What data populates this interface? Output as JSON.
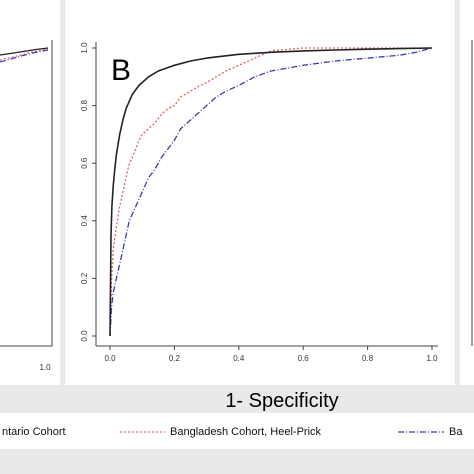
{
  "chart_data": {
    "type": "line",
    "panel_label": "B",
    "xlabel": "1- Specificity",
    "ylabel": "",
    "xlim": [
      0,
      1
    ],
    "ylim": [
      0,
      1
    ],
    "x_ticks": [
      "0.0",
      "0.2",
      "0.4",
      "0.6",
      "0.8",
      "1.0"
    ],
    "y_ticks": [
      "0.0",
      "0.2",
      "0.4",
      "0.6",
      "0.8",
      "1.0"
    ],
    "left_panel_x_tick": "1.0",
    "grid": false,
    "series": [
      {
        "name": "Ontario Cohort",
        "legend_text": "ntario Cohort",
        "color": "#222222",
        "style": "solid",
        "x": [
          0,
          0.003,
          0.006,
          0.01,
          0.015,
          0.02,
          0.03,
          0.04,
          0.05,
          0.07,
          0.09,
          0.12,
          0.15,
          0.2,
          0.25,
          0.3,
          0.4,
          0.5,
          0.6,
          0.7,
          0.8,
          0.9,
          1.0
        ],
        "y": [
          0,
          0.35,
          0.45,
          0.52,
          0.58,
          0.63,
          0.7,
          0.75,
          0.79,
          0.84,
          0.87,
          0.9,
          0.92,
          0.94,
          0.955,
          0.965,
          0.978,
          0.985,
          0.99,
          0.993,
          0.996,
          0.998,
          1.0
        ]
      },
      {
        "name": "Bangladesh Cohort, Heel-Prick",
        "legend_text": "Bangladesh Cohort, Heel-Prick",
        "color": "#e06060",
        "style": "dotted",
        "x": [
          0,
          0.005,
          0.01,
          0.02,
          0.03,
          0.04,
          0.05,
          0.06,
          0.07,
          0.08,
          0.09,
          0.1,
          0.12,
          0.14,
          0.16,
          0.18,
          0.2,
          0.22,
          0.25,
          0.28,
          0.3,
          0.33,
          0.36,
          0.38,
          0.42,
          0.46,
          0.5,
          0.6,
          0.7,
          0.8,
          0.9,
          1.0
        ],
        "y": [
          0,
          0.2,
          0.3,
          0.38,
          0.45,
          0.5,
          0.55,
          0.6,
          0.62,
          0.65,
          0.68,
          0.7,
          0.72,
          0.74,
          0.77,
          0.79,
          0.8,
          0.83,
          0.85,
          0.87,
          0.88,
          0.9,
          0.92,
          0.93,
          0.95,
          0.97,
          0.99,
          1.0,
          1.0,
          1.0,
          1.0,
          1.0
        ]
      },
      {
        "name": "Bangladesh Cohort",
        "legend_text": "Ba",
        "color": "#3a3ab5",
        "style": "dashdot",
        "x": [
          0,
          0.005,
          0.01,
          0.02,
          0.03,
          0.04,
          0.05,
          0.06,
          0.08,
          0.1,
          0.12,
          0.14,
          0.16,
          0.18,
          0.2,
          0.22,
          0.25,
          0.28,
          0.3,
          0.33,
          0.36,
          0.4,
          0.45,
          0.5,
          0.55,
          0.6,
          0.7,
          0.8,
          0.9,
          0.95,
          1.0
        ],
        "y": [
          0,
          0.1,
          0.15,
          0.2,
          0.25,
          0.3,
          0.35,
          0.4,
          0.45,
          0.5,
          0.55,
          0.58,
          0.62,
          0.65,
          0.68,
          0.72,
          0.75,
          0.78,
          0.8,
          0.83,
          0.85,
          0.87,
          0.9,
          0.92,
          0.93,
          0.94,
          0.955,
          0.965,
          0.975,
          0.985,
          1.0
        ]
      }
    ]
  }
}
